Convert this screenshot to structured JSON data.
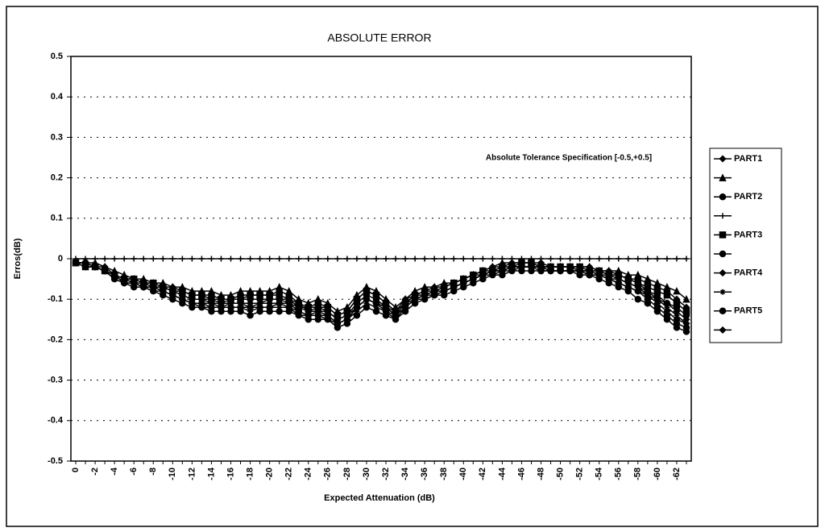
{
  "chart_data": {
    "type": "line",
    "title": "ABSOLUTE ERROR",
    "y_label": "Erros(dB)",
    "x_label": "Expected Attenuation (dB)",
    "annotation": "Absolute Tolerance Specification [-0.5,+0.5]",
    "categories": [
      0,
      null,
      -2,
      null,
      -4,
      null,
      -6,
      null,
      -8,
      null,
      -10,
      null,
      -12,
      null,
      -14,
      null,
      -16,
      null,
      -18,
      null,
      -20,
      null,
      -22,
      null,
      -24,
      null,
      -26,
      null,
      -28,
      null,
      -30,
      null,
      -32,
      null,
      -34,
      null,
      -36,
      null,
      -38,
      null,
      -40,
      null,
      -42,
      null,
      -44,
      null,
      -46,
      null,
      -48,
      null,
      -50,
      null,
      -52,
      null,
      -54,
      null,
      -56,
      null,
      -58,
      null,
      -60,
      null,
      -62,
      null
    ],
    "ylim": [
      -0.5,
      0.5
    ],
    "yticks": [
      -0.5,
      -0.4,
      -0.3,
      -0.2,
      -0.1,
      0,
      0.1,
      0.2,
      0.3,
      0.4,
      0.5
    ],
    "grid": true,
    "legend": "right",
    "series": [
      {
        "name": "PART1",
        "color": "#000",
        "marker": "diamond",
        "values": [
          -0.01,
          -0.01,
          -0.02,
          -0.03,
          -0.04,
          -0.05,
          -0.06,
          -0.06,
          -0.07,
          -0.07,
          -0.08,
          -0.09,
          -0.1,
          -0.1,
          -0.11,
          -0.11,
          -0.11,
          -0.11,
          -0.11,
          -0.11,
          -0.1,
          -0.1,
          -0.11,
          -0.12,
          -0.13,
          -0.13,
          -0.13,
          -0.15,
          -0.14,
          -0.12,
          -0.1,
          -0.11,
          -0.12,
          -0.14,
          -0.11,
          -0.1,
          -0.09,
          -0.08,
          -0.08,
          -0.07,
          -0.06,
          -0.05,
          -0.04,
          -0.03,
          -0.03,
          -0.02,
          -0.02,
          -0.02,
          -0.02,
          -0.02,
          -0.02,
          -0.02,
          -0.03,
          -0.03,
          -0.04,
          -0.04,
          -0.05,
          -0.06,
          -0.07,
          -0.08,
          -0.1,
          -0.11,
          -0.13,
          -0.15
        ]
      },
      {
        "name": null,
        "color": "#000",
        "marker": "triangle",
        "values": [
          -0.01,
          -0.01,
          -0.01,
          -0.02,
          -0.03,
          -0.04,
          -0.05,
          -0.05,
          -0.06,
          -0.06,
          -0.07,
          -0.07,
          -0.08,
          -0.08,
          -0.08,
          -0.09,
          -0.09,
          -0.08,
          -0.08,
          -0.08,
          -0.08,
          -0.07,
          -0.08,
          -0.1,
          -0.11,
          -0.1,
          -0.11,
          -0.13,
          -0.12,
          -0.09,
          -0.07,
          -0.08,
          -0.1,
          -0.12,
          -0.1,
          -0.08,
          -0.07,
          -0.07,
          -0.06,
          -0.06,
          -0.05,
          -0.04,
          -0.03,
          -0.02,
          -0.01,
          -0.01,
          -0.01,
          -0.01,
          -0.02,
          -0.02,
          -0.02,
          -0.02,
          -0.02,
          -0.02,
          -0.03,
          -0.03,
          -0.03,
          -0.04,
          -0.04,
          -0.05,
          -0.06,
          -0.07,
          -0.08,
          -0.1
        ]
      },
      {
        "name": "PART2",
        "color": "#000",
        "marker": "circle",
        "values": [
          -0.01,
          -0.02,
          -0.02,
          -0.03,
          -0.05,
          -0.06,
          -0.07,
          -0.07,
          -0.08,
          -0.09,
          -0.1,
          -0.11,
          -0.12,
          -0.12,
          -0.13,
          -0.13,
          -0.13,
          -0.13,
          -0.14,
          -0.13,
          -0.13,
          -0.13,
          -0.13,
          -0.14,
          -0.15,
          -0.15,
          -0.15,
          -0.17,
          -0.16,
          -0.14,
          -0.12,
          -0.13,
          -0.14,
          -0.15,
          -0.13,
          -0.11,
          -0.1,
          -0.09,
          -0.09,
          -0.08,
          -0.07,
          -0.06,
          -0.05,
          -0.04,
          -0.04,
          -0.03,
          -0.03,
          -0.03,
          -0.03,
          -0.03,
          -0.03,
          -0.03,
          -0.04,
          -0.04,
          -0.05,
          -0.06,
          -0.07,
          -0.08,
          -0.1,
          -0.11,
          -0.13,
          -0.15,
          -0.17,
          -0.18
        ]
      },
      {
        "name": null,
        "color": "#000",
        "marker": "plus",
        "values": [
          0,
          0,
          0,
          0,
          0,
          0,
          0,
          0,
          0,
          0,
          0,
          0,
          0,
          0,
          0,
          0,
          0,
          0,
          0,
          0,
          0,
          0,
          0,
          0,
          0,
          0,
          0,
          0,
          0,
          0,
          0,
          0,
          0,
          0,
          0,
          0,
          0,
          0,
          0,
          0,
          0,
          0,
          0,
          0,
          0,
          0,
          0,
          0,
          0,
          0,
          0,
          0,
          0,
          0,
          0,
          0,
          0,
          0,
          0,
          0,
          0,
          0,
          0,
          0
        ]
      },
      {
        "name": "PART3",
        "color": "#000",
        "marker": "square",
        "values": [
          -0.01,
          -0.02,
          -0.02,
          -0.03,
          -0.04,
          -0.05,
          -0.05,
          -0.06,
          -0.06,
          -0.07,
          -0.08,
          -0.08,
          -0.09,
          -0.09,
          -0.1,
          -0.1,
          -0.1,
          -0.1,
          -0.09,
          -0.09,
          -0.09,
          -0.09,
          -0.1,
          -0.12,
          -0.12,
          -0.12,
          -0.12,
          -0.14,
          -0.13,
          -0.1,
          -0.08,
          -0.09,
          -0.11,
          -0.13,
          -0.11,
          -0.09,
          -0.08,
          -0.08,
          -0.07,
          -0.06,
          -0.05,
          -0.04,
          -0.03,
          -0.03,
          -0.02,
          -0.02,
          -0.01,
          -0.01,
          -0.02,
          -0.02,
          -0.02,
          -0.02,
          -0.02,
          -0.03,
          -0.03,
          -0.04,
          -0.04,
          -0.05,
          -0.06,
          -0.07,
          -0.08,
          -0.09,
          -0.11,
          -0.13
        ]
      },
      {
        "name": null,
        "color": "#000",
        "marker": "circle",
        "values": [
          -0.01,
          -0.01,
          -0.02,
          -0.03,
          -0.04,
          -0.05,
          -0.06,
          -0.07,
          -0.07,
          -0.08,
          -0.09,
          -0.1,
          -0.11,
          -0.11,
          -0.12,
          -0.12,
          -0.12,
          -0.12,
          -0.12,
          -0.12,
          -0.12,
          -0.11,
          -0.12,
          -0.13,
          -0.14,
          -0.14,
          -0.14,
          -0.16,
          -0.15,
          -0.12,
          -0.1,
          -0.11,
          -0.13,
          -0.14,
          -0.12,
          -0.1,
          -0.09,
          -0.09,
          -0.08,
          -0.07,
          -0.06,
          -0.05,
          -0.04,
          -0.03,
          -0.03,
          -0.02,
          -0.02,
          -0.02,
          -0.03,
          -0.03,
          -0.03,
          -0.03,
          -0.03,
          -0.04,
          -0.04,
          -0.05,
          -0.06,
          -0.07,
          -0.08,
          -0.1,
          -0.12,
          -0.14,
          -0.16,
          -0.17
        ]
      },
      {
        "name": "PART4",
        "color": "#000",
        "marker": "diamond",
        "values": [
          -0.01,
          -0.01,
          -0.02,
          -0.02,
          -0.04,
          -0.05,
          -0.05,
          -0.06,
          -0.06,
          -0.07,
          -0.07,
          -0.08,
          -0.09,
          -0.09,
          -0.09,
          -0.1,
          -0.1,
          -0.09,
          -0.09,
          -0.09,
          -0.09,
          -0.08,
          -0.09,
          -0.11,
          -0.12,
          -0.11,
          -0.12,
          -0.14,
          -0.13,
          -0.1,
          -0.08,
          -0.09,
          -0.11,
          -0.13,
          -0.1,
          -0.09,
          -0.08,
          -0.07,
          -0.07,
          -0.06,
          -0.05,
          -0.04,
          -0.03,
          -0.02,
          -0.02,
          -0.01,
          -0.01,
          -0.01,
          -0.01,
          -0.02,
          -0.02,
          -0.02,
          -0.02,
          -0.02,
          -0.03,
          -0.03,
          -0.04,
          -0.05,
          -0.05,
          -0.06,
          -0.07,
          -0.08,
          -0.1,
          -0.12
        ]
      },
      {
        "name": null,
        "color": "#000",
        "marker": "star",
        "values": [
          -0.01,
          -0.02,
          -0.02,
          -0.03,
          -0.05,
          -0.06,
          -0.06,
          -0.07,
          -0.08,
          -0.08,
          -0.09,
          -0.1,
          -0.11,
          -0.12,
          -0.12,
          -0.12,
          -0.12,
          -0.12,
          -0.13,
          -0.12,
          -0.12,
          -0.12,
          -0.12,
          -0.14,
          -0.14,
          -0.14,
          -0.15,
          -0.16,
          -0.15,
          -0.13,
          -0.11,
          -0.12,
          -0.13,
          -0.15,
          -0.12,
          -0.1,
          -0.1,
          -0.09,
          -0.08,
          -0.07,
          -0.06,
          -0.05,
          -0.04,
          -0.04,
          -0.03,
          -0.03,
          -0.02,
          -0.02,
          -0.02,
          -0.03,
          -0.03,
          -0.03,
          -0.03,
          -0.03,
          -0.04,
          -0.05,
          -0.05,
          -0.06,
          -0.07,
          -0.09,
          -0.1,
          -0.12,
          -0.14,
          -0.16
        ]
      },
      {
        "name": "PART5",
        "color": "#000",
        "marker": "circle",
        "values": [
          -0.01,
          -0.01,
          -0.02,
          -0.03,
          -0.04,
          -0.05,
          -0.05,
          -0.06,
          -0.07,
          -0.07,
          -0.08,
          -0.09,
          -0.1,
          -0.1,
          -0.1,
          -0.11,
          -0.1,
          -0.1,
          -0.1,
          -0.1,
          -0.1,
          -0.1,
          -0.1,
          -0.11,
          -0.13,
          -0.12,
          -0.13,
          -0.15,
          -0.14,
          -0.11,
          -0.09,
          -0.1,
          -0.12,
          -0.13,
          -0.11,
          -0.09,
          -0.09,
          -0.08,
          -0.07,
          -0.06,
          -0.05,
          -0.04,
          -0.04,
          -0.03,
          -0.02,
          -0.02,
          -0.02,
          -0.02,
          -0.02,
          -0.02,
          -0.02,
          -0.02,
          -0.03,
          -0.03,
          -0.03,
          -0.04,
          -0.04,
          -0.05,
          -0.06,
          -0.08,
          -0.09,
          -0.11,
          -0.12,
          -0.14
        ]
      },
      {
        "name": null,
        "color": "#000",
        "marker": "diamond",
        "values": [
          -0.01,
          -0.02,
          -0.02,
          -0.03,
          -0.04,
          -0.06,
          -0.06,
          -0.07,
          -0.07,
          -0.08,
          -0.09,
          -0.1,
          -0.11,
          -0.11,
          -0.11,
          -0.12,
          -0.11,
          -0.11,
          -0.12,
          -0.11,
          -0.11,
          -0.11,
          -0.11,
          -0.13,
          -0.14,
          -0.13,
          -0.14,
          -0.16,
          -0.15,
          -0.12,
          -0.1,
          -0.11,
          -0.12,
          -0.14,
          -0.12,
          -0.1,
          -0.09,
          -0.08,
          -0.08,
          -0.07,
          -0.06,
          -0.05,
          -0.04,
          -0.03,
          -0.03,
          -0.02,
          -0.02,
          -0.02,
          -0.02,
          -0.03,
          -0.03,
          -0.03,
          -0.03,
          -0.04,
          -0.04,
          -0.05,
          -0.06,
          -0.07,
          -0.08,
          -0.09,
          -0.11,
          -0.13,
          -0.15,
          -0.16
        ]
      }
    ]
  }
}
